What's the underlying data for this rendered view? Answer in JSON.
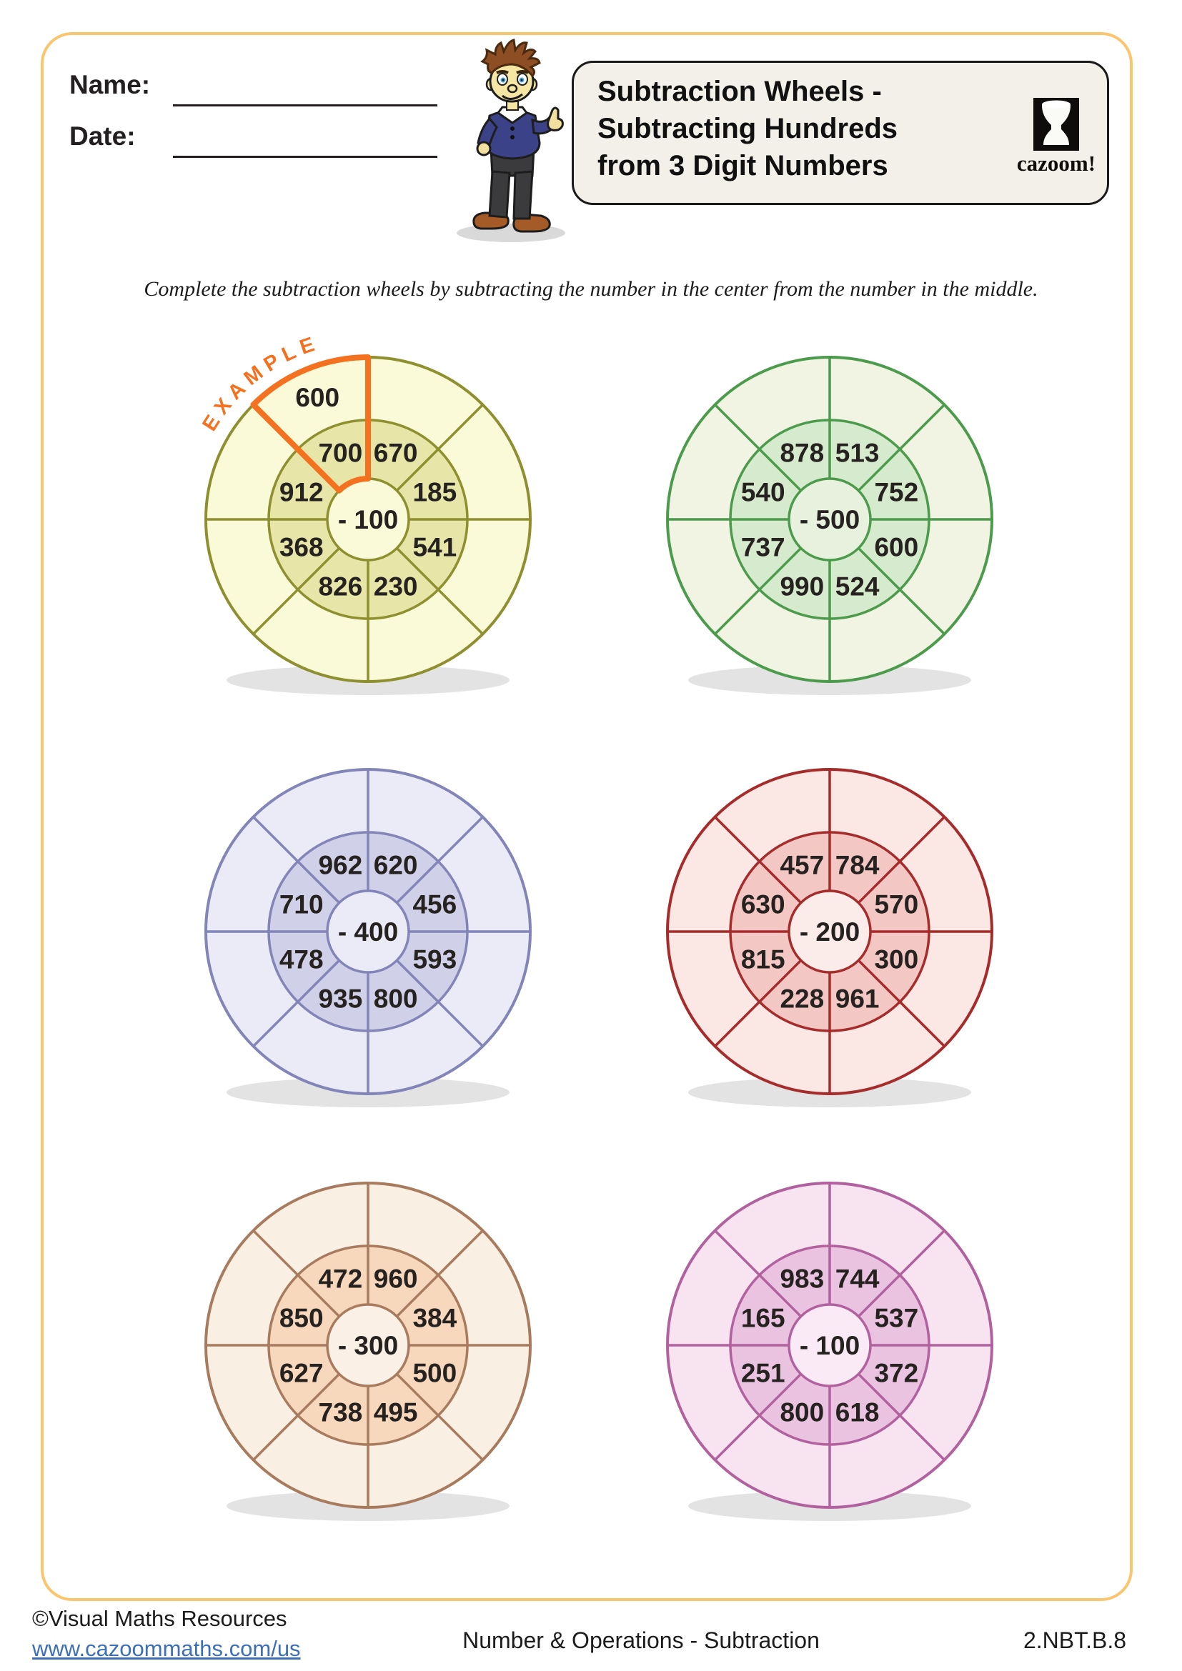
{
  "header": {
    "name_label": "Name:",
    "date_label": "Date:",
    "title_lines": [
      "Subtraction Wheels -",
      "Subtracting Hundreds",
      "from 3 Digit Numbers"
    ],
    "logo_text": "cazoom!"
  },
  "instruction": "Complete the subtraction wheels by subtracting the number in the center from the number in the middle.",
  "example_label": "EXAMPLE",
  "colors": {
    "accent_orange": "#F4711F",
    "page_border": "#FBC56D",
    "title_box_bg": "#F3F0E9",
    "title_box_border": "#1A1A1A",
    "number_text": "#262220",
    "link_blue": "#3D6FB6",
    "wheel_shadow": "#E3E3E3"
  },
  "wheels": [
    {
      "name": "wheel-yellow",
      "center_label": "- 100",
      "inner_values": [
        "700",
        "670",
        "185",
        "541",
        "230",
        "826",
        "368",
        "912"
      ],
      "outer_values": [
        "600",
        "",
        "",
        "",
        "",
        "",
        "",
        ""
      ],
      "example": {
        "sector": 0,
        "answer": "600"
      },
      "colors": {
        "stroke": "#8E8F2F",
        "outer_ring": "#FAF9D8",
        "inner_ring": "#E8E5A8",
        "center": "#FAF9D8"
      }
    },
    {
      "name": "wheel-green",
      "center_label": "- 500",
      "inner_values": [
        "878",
        "513",
        "752",
        "600",
        "524",
        "990",
        "737",
        "540"
      ],
      "colors": {
        "stroke": "#4C9B4C",
        "outer_ring": "#F1F3E3",
        "inner_ring": "#D6EACD",
        "center": "#E8F1DE"
      }
    },
    {
      "name": "wheel-purple",
      "center_label": "- 400",
      "inner_values": [
        "962",
        "620",
        "456",
        "593",
        "800",
        "935",
        "478",
        "710"
      ],
      "colors": {
        "stroke": "#8384B8",
        "outer_ring": "#EBEBF7",
        "inner_ring": "#D0D0E8",
        "center": "#EBEBF7"
      }
    },
    {
      "name": "wheel-red",
      "center_label": "- 200",
      "inner_values": [
        "457",
        "784",
        "570",
        "300",
        "961",
        "228",
        "815",
        "630"
      ],
      "colors": {
        "stroke": "#A62B2B",
        "outer_ring": "#FBE7E4",
        "inner_ring": "#F3C8C4",
        "center": "#FBECEA"
      }
    },
    {
      "name": "wheel-tan",
      "center_label": "- 300",
      "inner_values": [
        "472",
        "960",
        "384",
        "500",
        "495",
        "738",
        "627",
        "850"
      ],
      "colors": {
        "stroke": "#A87B5E",
        "outer_ring": "#FAEFE3",
        "inner_ring": "#F7D8BD",
        "center": "#FAF0E5"
      }
    },
    {
      "name": "wheel-pink",
      "center_label": "- 100",
      "inner_values": [
        "983",
        "744",
        "537",
        "372",
        "618",
        "800",
        "251",
        "165"
      ],
      "colors": {
        "stroke": "#B2619F",
        "outer_ring": "#F8E3F1",
        "inner_ring": "#EAC3E0",
        "center": "#FAEAF5"
      }
    }
  ],
  "footer": {
    "copyright": "©Visual Maths Resources",
    "url": "www.cazoommaths.com/us",
    "center": "Number & Operations - Subtraction",
    "standard": "2.NBT.B.8"
  }
}
